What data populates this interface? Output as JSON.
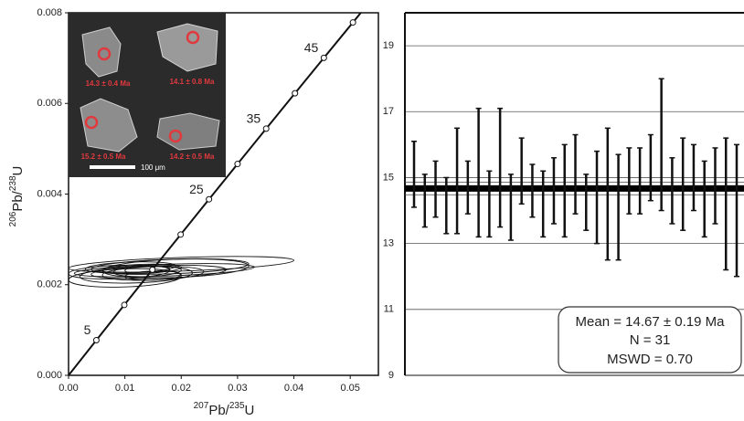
{
  "chart_data": [
    {
      "type": "concordia",
      "x_label": [
        "207",
        "Pb/",
        "235",
        "U"
      ],
      "y_label": [
        "206",
        "Pb/",
        "238",
        "U"
      ],
      "xlim": [
        0,
        0.055
      ],
      "ylim": [
        0,
        0.008
      ],
      "xticks": [
        {
          "value": 0,
          "label": "0.00"
        },
        {
          "value": 0.01,
          "label": "0.01"
        },
        {
          "value": 0.02,
          "label": "0.02"
        },
        {
          "value": 0.03,
          "label": "0.03"
        },
        {
          "value": 0.04,
          "label": "0.04"
        },
        {
          "value": 0.05,
          "label": "0.05"
        }
      ],
      "yticks": [
        {
          "value": 0,
          "label": "0.000"
        },
        {
          "value": 0.002,
          "label": "0.002"
        },
        {
          "value": 0.004,
          "label": "0.004"
        },
        {
          "value": 0.006,
          "label": "0.006"
        },
        {
          "value": 0.008,
          "label": "0.008"
        }
      ],
      "concordia": {
        "x": [
          0,
          0.004936,
          0.009897,
          0.01488,
          0.0199,
          0.02493,
          0.03,
          0.03508,
          0.04019,
          0.04532,
          0.05048,
          0.0556
        ],
        "y": [
          0,
          0.000776,
          0.001553,
          0.00233,
          0.003107,
          0.003885,
          0.004664,
          0.005444,
          0.006224,
          0.007005,
          0.007787,
          0.00857
        ],
        "labels": [
          null,
          "5",
          null,
          null,
          null,
          "25",
          null,
          "35",
          null,
          "45",
          null,
          null
        ]
      },
      "ellipses": {
        "x": [
          0.014,
          0.015,
          0.013,
          0.016,
          0.012,
          0.018,
          0.02,
          0.01,
          0.017,
          0.011,
          0.015,
          0.014,
          0.019,
          0.009
        ],
        "y": [
          0.0023,
          0.00225,
          0.00235,
          0.00228,
          0.00222,
          0.0024,
          0.00245,
          0.00215,
          0.00232,
          0.00238,
          0.0022,
          0.00233,
          0.00236,
          0.00228
        ],
        "x_err": [
          0.006,
          0.009,
          0.007,
          0.012,
          0.01,
          0.014,
          0.02,
          0.01,
          0.016,
          0.008,
          0.005,
          0.004,
          0.013,
          0.009
        ],
        "y_err": [
          0.00012,
          0.00015,
          0.0001,
          0.00014,
          0.00018,
          0.00016,
          0.00015,
          0.0002,
          0.00013,
          0.00012,
          0.0001,
          8e-05,
          0.0002,
          0.00015
        ]
      },
      "inset": {
        "labels": [
          "14.3 ± 0.4 Ma",
          "14.1 ± 0.8 Ma",
          "15.2 ± 0.5 Ma",
          "14.2 ± 0.5 Ma"
        ],
        "scale": "100 μm"
      }
    },
    {
      "type": "errorbar",
      "ylim": [
        9,
        20
      ],
      "yticks": [
        9,
        11,
        13,
        15,
        17,
        19
      ],
      "grid": true,
      "values": [
        15.1,
        14.3,
        14.65,
        14.15,
        14.9,
        14.7,
        15.15,
        14.2,
        15.3,
        14.1,
        15.2,
        14.6,
        14.2,
        14.6,
        14.6,
        15.1,
        14.25,
        14.4,
        14.5,
        14.1,
        14.9,
        14.9,
        15.3,
        16.0,
        14.6,
        14.8,
        15.0,
        14.35,
        14.75,
        14.2,
        14.0
      ],
      "errors": [
        1.0,
        0.8,
        0.85,
        0.85,
        1.6,
        0.8,
        1.95,
        1.0,
        1.8,
        1.0,
        1.0,
        0.8,
        1.0,
        1.0,
        1.4,
        1.2,
        0.85,
        1.4,
        2.0,
        1.6,
        1.0,
        1.0,
        1.0,
        2.0,
        1.0,
        1.4,
        1.0,
        1.15,
        1.15,
        2.0,
        2.0
      ],
      "color": "#111111",
      "mean": 14.67,
      "mean_err": 0.19,
      "annotations": [
        "Mean = 14.67 ± 0.19 Ma",
        "N = 31",
        "MSWD = 0.70"
      ]
    }
  ]
}
